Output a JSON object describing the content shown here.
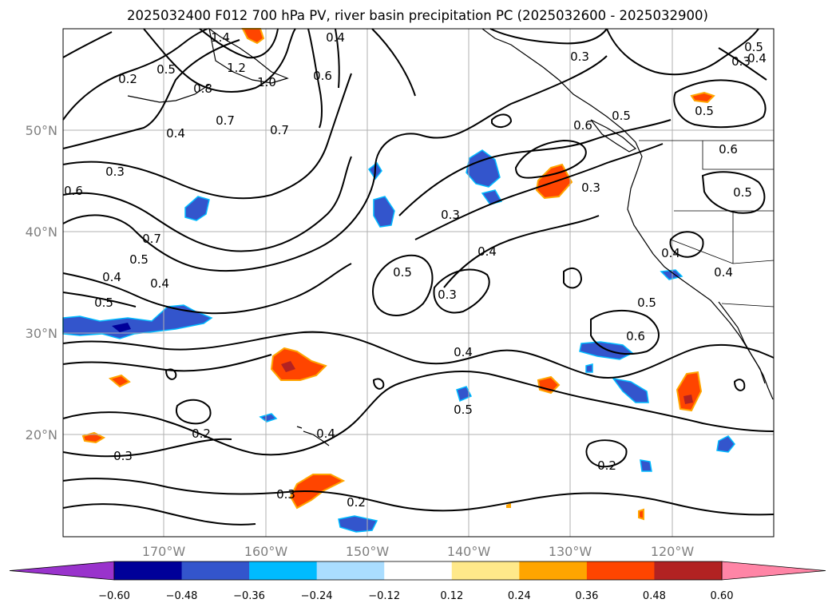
{
  "title": "2025032400 F012 700 hPa PV, river basin precipitation PC (2025032600 - 2025032900)",
  "lon_ticks": [
    "170°W",
    "160°W",
    "150°W",
    "140°W",
    "130°W",
    "120°W"
  ],
  "lat_ticks": [
    "50°N",
    "40°N",
    "30°N",
    "20°N"
  ],
  "colorbar": {
    "colors": [
      "#9933cc",
      "#000099",
      "#3355cc",
      "#00bbff",
      "#aaddff",
      "#ffffff",
      "#ffe98a",
      "#ffa500",
      "#ff4500",
      "#b22222",
      "#ff85a6"
    ],
    "labels": [
      "−0.60",
      "−0.48",
      "−0.36",
      "−0.24",
      "−0.12",
      "0.12",
      "0.24",
      "0.36",
      "0.48",
      "0.60"
    ]
  },
  "contour_labels": [
    {
      "text": "1.4"
    },
    {
      "text": "0.4"
    },
    {
      "text": "1.2"
    },
    {
      "text": "0.8"
    },
    {
      "text": "1.0"
    },
    {
      "text": "0.6"
    },
    {
      "text": "0.5"
    },
    {
      "text": "0.2"
    },
    {
      "text": "0.7"
    },
    {
      "text": "0.4"
    },
    {
      "text": "0.7"
    },
    {
      "text": "0.3"
    },
    {
      "text": "0.6"
    },
    {
      "text": "0.7"
    },
    {
      "text": "0.5"
    },
    {
      "text": "0.4"
    },
    {
      "text": "0.4"
    },
    {
      "text": "0.5"
    },
    {
      "text": "0.3"
    },
    {
      "text": "0.3"
    },
    {
      "text": "0.6"
    },
    {
      "text": "0.5"
    },
    {
      "text": "0.3"
    },
    {
      "text": "0.3"
    },
    {
      "text": "0.4"
    },
    {
      "text": "0.5"
    },
    {
      "text": "0.3"
    },
    {
      "text": "0.4"
    },
    {
      "text": "0.5"
    },
    {
      "text": "0.6"
    },
    {
      "text": "0.5"
    },
    {
      "text": "0.2"
    },
    {
      "text": "0.3"
    },
    {
      "text": "0.4"
    },
    {
      "text": "0.3"
    },
    {
      "text": "0.2"
    },
    {
      "text": "0.2"
    },
    {
      "text": "0.4"
    },
    {
      "text": "0.6"
    },
    {
      "text": "0.5"
    },
    {
      "text": "0.5"
    },
    {
      "text": "0.4"
    },
    {
      "text": "0.4"
    },
    {
      "text": "0.5"
    }
  ]
}
